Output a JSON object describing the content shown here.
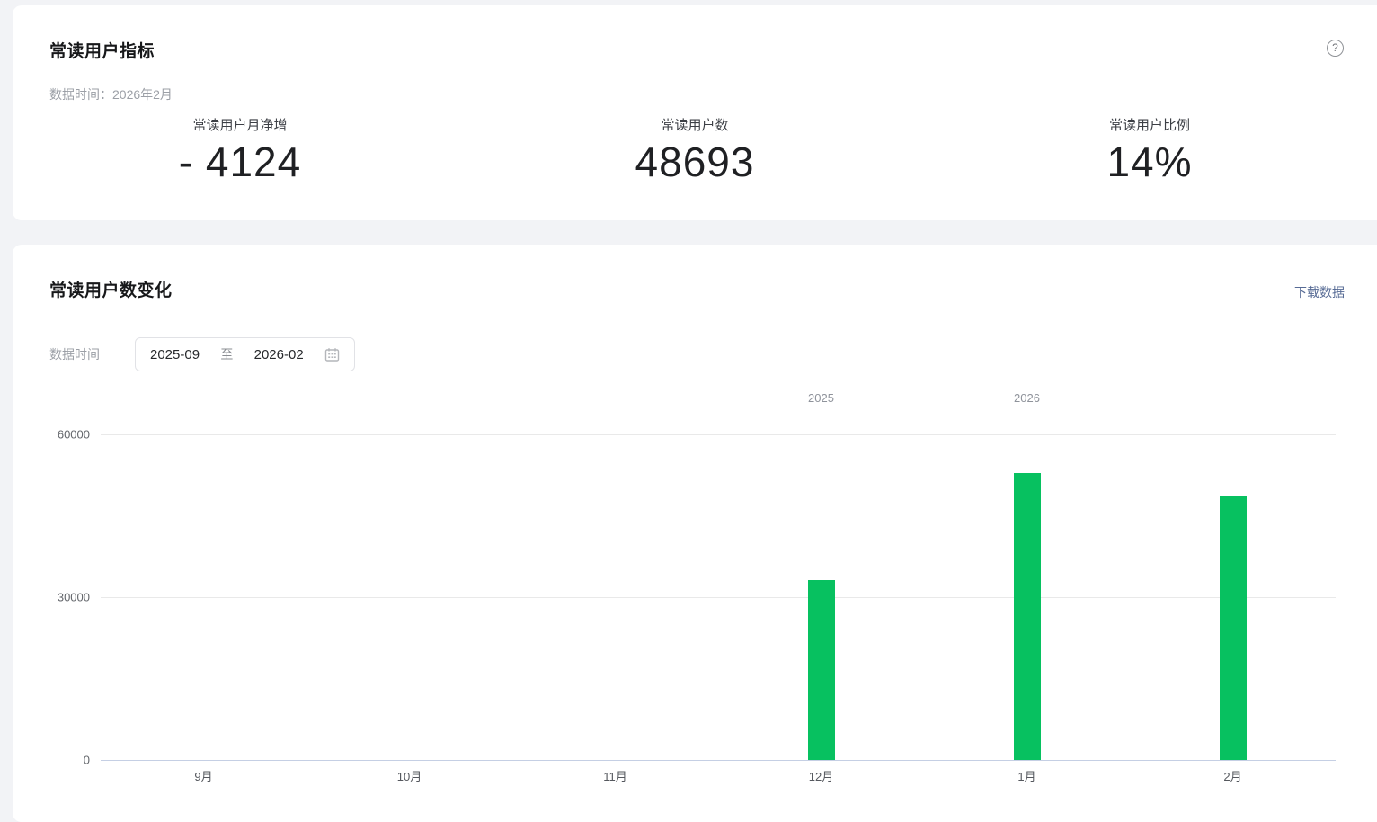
{
  "card1": {
    "title": "常读用户指标",
    "data_time": "数据时间：2026年2月",
    "help_icon": "?",
    "metrics": [
      {
        "label": "常读用户月净增",
        "value": "- 4124"
      },
      {
        "label": "常读用户数",
        "value": "48693"
      },
      {
        "label": "常读用户比例",
        "value": "14%"
      }
    ]
  },
  "card2": {
    "title": "常读用户数变化",
    "download_link": "下载数据",
    "data_time_label": "数据时间",
    "date_picker": {
      "start": "2025-09",
      "separator": "至",
      "end": "2026-02",
      "calendar_icon": "calendar-icon"
    }
  },
  "chart_data": {
    "type": "bar",
    "title": "常读用户数变化",
    "categories": [
      "9月",
      "10月",
      "11月",
      "12月",
      "1月",
      "2月"
    ],
    "values": [
      0,
      0,
      0,
      33200,
      52817,
      48693
    ],
    "year_labels": [
      {
        "text": "2025",
        "category_index": 3
      },
      {
        "text": "2026",
        "category_index": 4
      }
    ],
    "yticks": [
      0,
      30000,
      60000
    ],
    "ylim": [
      0,
      60000
    ],
    "bar_color": "#07c160",
    "grid": true,
    "legend": "none",
    "xlabel": "",
    "ylabel": ""
  },
  "colors": {
    "page_bg": "#f2f3f6",
    "card_bg": "#ffffff",
    "accent_green": "#07c160",
    "link_blue": "#576b95",
    "grid_line": "#e9e9e9",
    "axis_line": "#c5cfe4",
    "muted_text": "#9b9fa6"
  }
}
